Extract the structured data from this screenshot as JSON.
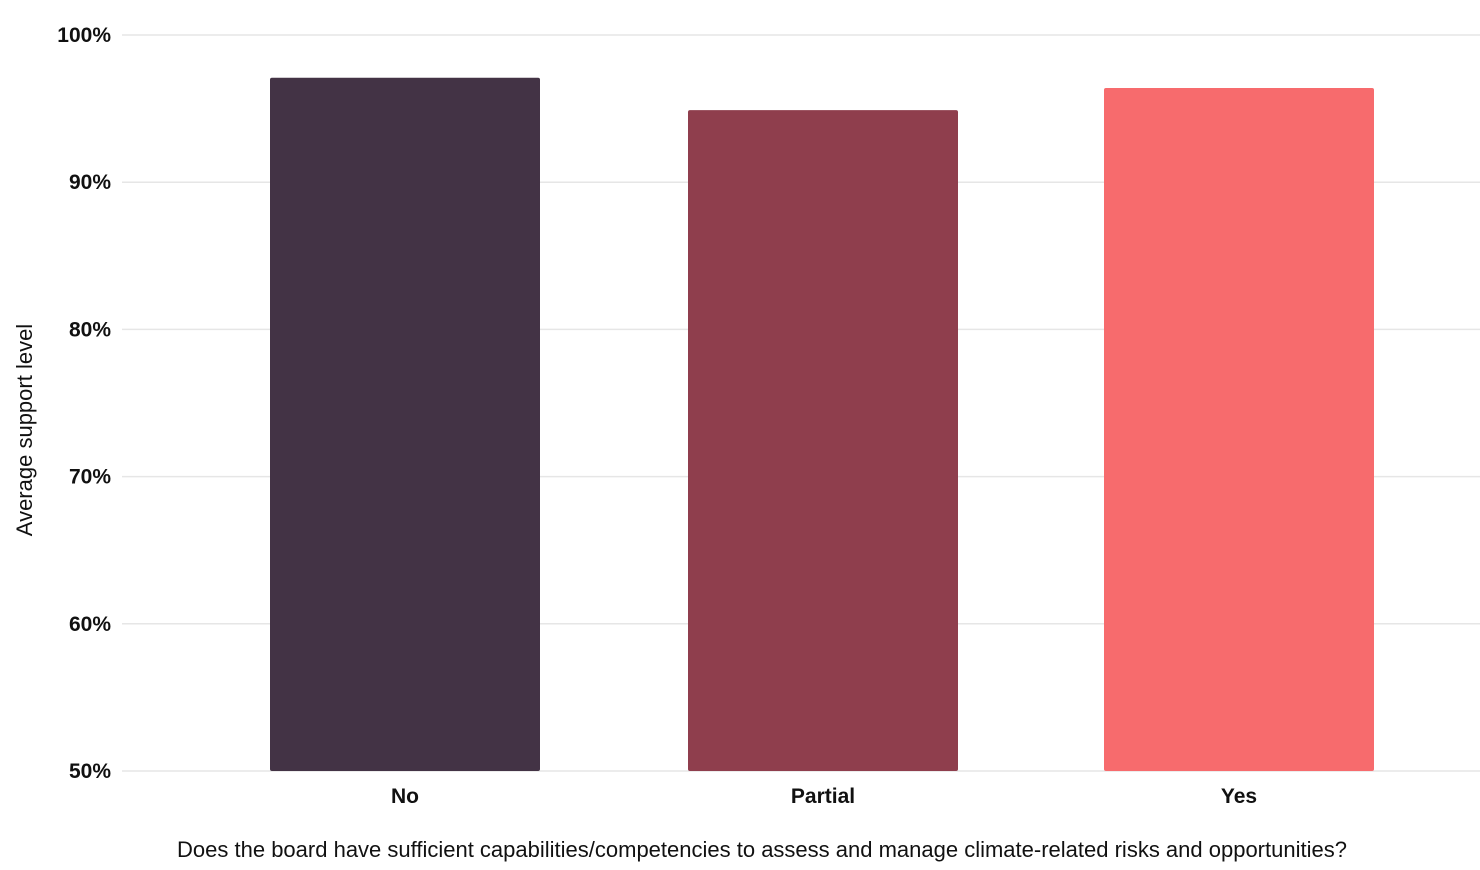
{
  "chart_data": {
    "type": "bar",
    "categories": [
      "No",
      "Partial",
      "Yes"
    ],
    "values": [
      97.1,
      94.9,
      96.4
    ],
    "colors": [
      "#433345",
      "#8f3e4d",
      "#f76b6d"
    ],
    "xlabel": "Does the board have sufficient capabilities/competencies to assess and manage climate-related risks and opportunities?",
    "ylabel": "Average support level",
    "ylim": [
      50,
      100
    ],
    "yticks": [
      50,
      60,
      70,
      80,
      90,
      100
    ],
    "ytick_labels": [
      "50%",
      "60%",
      "70%",
      "80%",
      "90%",
      "100%"
    ],
    "grid": true,
    "legend": "none"
  }
}
